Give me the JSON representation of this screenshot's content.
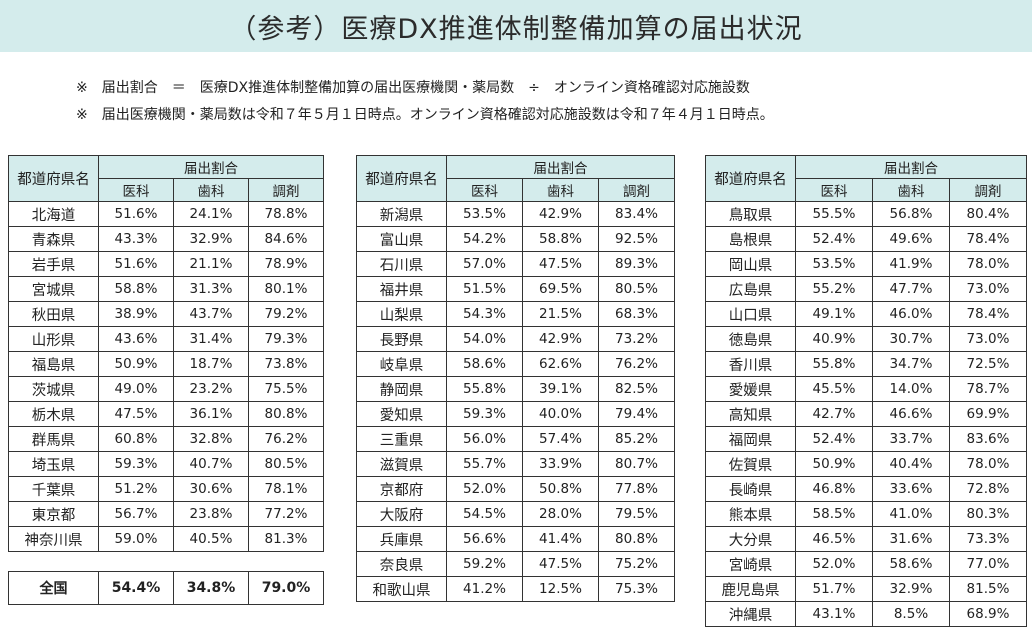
{
  "title": "（参考）医療DX推進体制整備加算の届出状況",
  "notes": [
    "※　届出割合　＝　医療DX推進体制整備加算の届出医療機関・薬局数　÷　オンライン資格確認対応施設数",
    "※　届出医療機関・薬局数は令和７年５月１日時点。オンライン資格確認対応施設数は令和７年４月１日時点。"
  ],
  "headers": {
    "prefecture": "都道府県名",
    "ratio": "届出割合",
    "medical": "医科",
    "dental": "歯科",
    "pharmacy": "調剤"
  },
  "tables": [
    [
      [
        "北海道",
        "51.6%",
        "24.1%",
        "78.8%"
      ],
      [
        "青森県",
        "43.3%",
        "32.9%",
        "84.6%"
      ],
      [
        "岩手県",
        "51.6%",
        "21.1%",
        "78.9%"
      ],
      [
        "宮城県",
        "58.8%",
        "31.3%",
        "80.1%"
      ],
      [
        "秋田県",
        "38.9%",
        "43.7%",
        "79.2%"
      ],
      [
        "山形県",
        "43.6%",
        "31.4%",
        "79.3%"
      ],
      [
        "福島県",
        "50.9%",
        "18.7%",
        "73.8%"
      ],
      [
        "茨城県",
        "49.0%",
        "23.2%",
        "75.5%"
      ],
      [
        "栃木県",
        "47.5%",
        "36.1%",
        "80.8%"
      ],
      [
        "群馬県",
        "60.8%",
        "32.8%",
        "76.2%"
      ],
      [
        "埼玉県",
        "59.3%",
        "40.7%",
        "80.5%"
      ],
      [
        "千葉県",
        "51.2%",
        "30.6%",
        "78.1%"
      ],
      [
        "東京都",
        "56.7%",
        "23.8%",
        "77.2%"
      ],
      [
        "神奈川県",
        "59.0%",
        "40.5%",
        "81.3%"
      ]
    ],
    [
      [
        "新潟県",
        "53.5%",
        "42.9%",
        "83.4%"
      ],
      [
        "富山県",
        "54.2%",
        "58.8%",
        "92.5%"
      ],
      [
        "石川県",
        "57.0%",
        "47.5%",
        "89.3%"
      ],
      [
        "福井県",
        "51.5%",
        "69.5%",
        "80.5%"
      ],
      [
        "山梨県",
        "54.3%",
        "21.5%",
        "68.3%"
      ],
      [
        "長野県",
        "54.0%",
        "42.9%",
        "73.2%"
      ],
      [
        "岐阜県",
        "58.6%",
        "62.6%",
        "76.2%"
      ],
      [
        "静岡県",
        "55.8%",
        "39.1%",
        "82.5%"
      ],
      [
        "愛知県",
        "59.3%",
        "40.0%",
        "79.4%"
      ],
      [
        "三重県",
        "56.0%",
        "57.4%",
        "85.2%"
      ],
      [
        "滋賀県",
        "55.7%",
        "33.9%",
        "80.7%"
      ],
      [
        "京都府",
        "52.0%",
        "50.8%",
        "77.8%"
      ],
      [
        "大阪府",
        "54.5%",
        "28.0%",
        "79.5%"
      ],
      [
        "兵庫県",
        "56.6%",
        "41.4%",
        "80.8%"
      ],
      [
        "奈良県",
        "59.2%",
        "47.5%",
        "75.2%"
      ],
      [
        "和歌山県",
        "41.2%",
        "12.5%",
        "75.3%"
      ]
    ],
    [
      [
        "鳥取県",
        "55.5%",
        "56.8%",
        "80.4%"
      ],
      [
        "島根県",
        "52.4%",
        "49.6%",
        "78.4%"
      ],
      [
        "岡山県",
        "53.5%",
        "41.9%",
        "78.0%"
      ],
      [
        "広島県",
        "55.2%",
        "47.7%",
        "73.0%"
      ],
      [
        "山口県",
        "49.1%",
        "46.0%",
        "78.4%"
      ],
      [
        "徳島県",
        "40.9%",
        "30.7%",
        "73.0%"
      ],
      [
        "香川県",
        "55.8%",
        "34.7%",
        "72.5%"
      ],
      [
        "愛媛県",
        "45.5%",
        "14.0%",
        "78.7%"
      ],
      [
        "高知県",
        "42.7%",
        "46.6%",
        "69.9%"
      ],
      [
        "福岡県",
        "52.4%",
        "33.7%",
        "83.6%"
      ],
      [
        "佐賀県",
        "50.9%",
        "40.4%",
        "78.0%"
      ],
      [
        "長崎県",
        "46.8%",
        "33.6%",
        "72.8%"
      ],
      [
        "熊本県",
        "58.5%",
        "41.0%",
        "80.3%"
      ],
      [
        "大分県",
        "46.5%",
        "31.6%",
        "73.3%"
      ],
      [
        "宮崎県",
        "52.0%",
        "58.6%",
        "77.0%"
      ],
      [
        "鹿児島県",
        "51.7%",
        "32.9%",
        "81.5%"
      ],
      [
        "沖縄県",
        "43.1%",
        "8.5%",
        "68.9%"
      ]
    ]
  ],
  "national": {
    "label": "全国",
    "medical": "54.4%",
    "dental": "34.8%",
    "pharmacy": "79.0%"
  }
}
